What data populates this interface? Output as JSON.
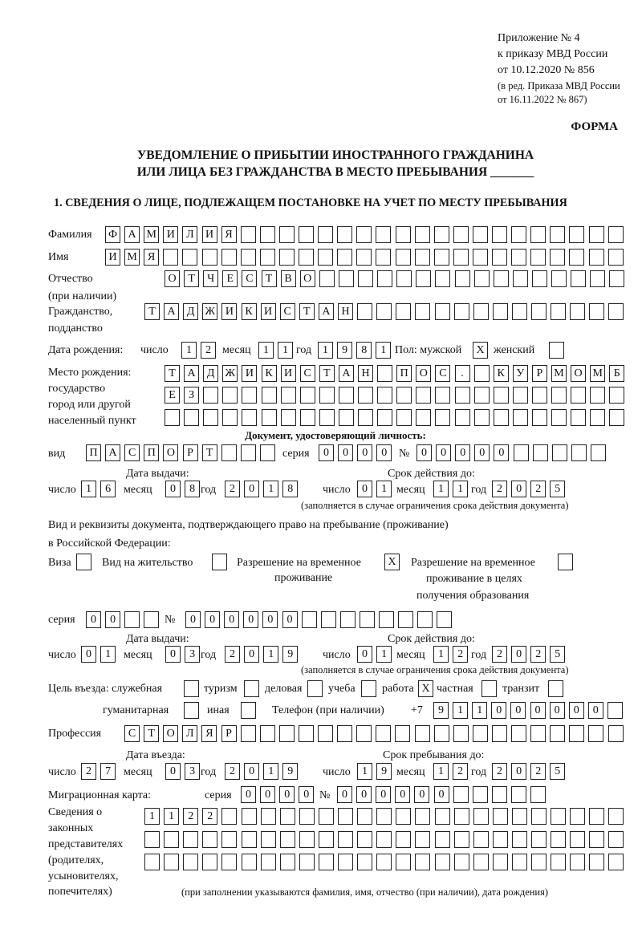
{
  "header": {
    "appendix": "Приложение № 4",
    "order": "к приказу МВД России",
    "order_date": "от 10.12.2020 № 856",
    "edition1": "(в ред. Приказа МВД России",
    "edition2": "от 16.11.2022 № 867)",
    "form": "ФОРМА",
    "title1": "УВЕДОМЛЕНИЕ О ПРИБЫТИИ ИНОСТРАННОГО ГРАЖДАНИНА",
    "title2": "ИЛИ ЛИЦА БЕЗ ГРАЖДАНСТВА В МЕСТО ПРЕБЫВАНИЯ _______",
    "section1": "1. СВЕДЕНИЯ О ЛИЦЕ, ПОДЛЕЖАЩЕМ ПОСТАНОВКЕ НА УЧЕТ ПО МЕСТУ ПРЕБЫВАНИЯ"
  },
  "labels": {
    "surname": "Фамилия",
    "name": "Имя",
    "patronymic1": "Отчество",
    "patronymic2": "(при наличии)",
    "citizenship1": "Гражданство,",
    "citizenship2": "подданство",
    "birth_date": "Дата рождения:",
    "day": "число",
    "month": "месяц",
    "year": "год",
    "sex": "Пол: мужской",
    "female": "женский",
    "birthplace1": "Место рождения:",
    "birthplace2": "государство",
    "birthplace3": "город или другой",
    "birthplace4": "населенный пункт",
    "id_doc": "Документ, удостоверяющий личность:",
    "kind": "вид",
    "series": "серия",
    "number": "№",
    "issue_date": "Дата выдачи:",
    "valid_until": "Срок действия до:",
    "valid_note": "(заполняется в случае ограничения срока действия документа)",
    "right_doc1": "Вид и реквизиты документа, подтверждающего право на пребывание (проживание)",
    "right_doc2": "в Российской Федерации:",
    "visa": "Виза",
    "residence": "Вид на жительство",
    "temp1": "Разрешение на временное",
    "temp2": "проживание",
    "temp_edu1": "Разрешение на временное",
    "temp_edu2": "проживание в целях",
    "temp_edu3": "получения образования",
    "purpose": "Цель въезда: служебная",
    "tourism": "туризм",
    "business": "деловая",
    "study": "учеба",
    "work": "работа",
    "private": "частная",
    "transit": "транзит",
    "humanitarian": "гуманитарная",
    "other": "иная",
    "phone": "Телефон (при наличии)",
    "phone_prefix": "+7",
    "profession": "Профессия",
    "entry_date": "Дата въезда:",
    "stay_until": "Срок пребывания до:",
    "migration_card": "Миграционная карта:",
    "reps1": "Сведения о",
    "reps2": "законных",
    "reps3": "представителях",
    "reps4": "(родителях,",
    "reps5": "усыновителях,",
    "reps6": "попечителях)",
    "reps_note": "(при заполнении указываются фамилия, имя, отчество (при наличии), дата рождения)"
  },
  "fields": {
    "surname": [
      "Ф",
      "А",
      "М",
      "И",
      "Л",
      "И",
      "Я"
    ],
    "name": [
      "И",
      "М",
      "Я"
    ],
    "patronymic": [
      "О",
      "Т",
      "Ч",
      "Е",
      "С",
      "Т",
      "В",
      "О"
    ],
    "citizenship": [
      "Т",
      "А",
      "Д",
      "Ж",
      "И",
      "К",
      "И",
      "С",
      "Т",
      "А",
      "Н"
    ],
    "birth_day": [
      "1",
      "2"
    ],
    "birth_month": [
      "1",
      "1"
    ],
    "birth_year": [
      "1",
      "9",
      "8",
      "1"
    ],
    "sex_male": "X",
    "sex_female": "",
    "birthplace_1": [
      "Т",
      "А",
      "Д",
      "Ж",
      "И",
      "К",
      "И",
      "С",
      "Т",
      "А",
      "Н",
      "",
      "П",
      "О",
      "С",
      ".",
      "",
      "К",
      "У",
      "Р",
      "М",
      "О",
      "М",
      "Б"
    ],
    "birthplace_2": [
      "Е",
      "З"
    ],
    "birthplace_3": [],
    "id_kind": [
      "П",
      "А",
      "С",
      "П",
      "О",
      "Р",
      "Т"
    ],
    "id_series": [
      "0",
      "0",
      "0",
      "0"
    ],
    "id_number": [
      "0",
      "0",
      "0",
      "0",
      "0"
    ],
    "id_issue_day": [
      "1",
      "6"
    ],
    "id_issue_month": [
      "0",
      "8"
    ],
    "id_issue_year": [
      "2",
      "0",
      "1",
      "8"
    ],
    "id_valid_day": [
      "0",
      "1"
    ],
    "id_valid_month": [
      "1",
      "1"
    ],
    "id_valid_year": [
      "2",
      "0",
      "2",
      "5"
    ],
    "right_visa": "",
    "right_residence": "",
    "right_temp": "X",
    "right_temp_edu": "",
    "right_series": [
      "0",
      "0"
    ],
    "right_number": [
      "0",
      "0",
      "0",
      "0",
      "0",
      "0"
    ],
    "right_issue_day": [
      "0",
      "1"
    ],
    "right_issue_month": [
      "0",
      "3"
    ],
    "right_issue_year": [
      "2",
      "0",
      "1",
      "9"
    ],
    "right_valid_day": [
      "0",
      "1"
    ],
    "right_valid_month": [
      "1",
      "2"
    ],
    "right_valid_year": [
      "2",
      "0",
      "2",
      "5"
    ],
    "purpose_service": "",
    "purpose_tourism": "",
    "purpose_business": "",
    "purpose_study": "",
    "purpose_work": "X",
    "purpose_private": "",
    "purpose_transit": "",
    "purpose_humanitarian": "",
    "purpose_other": "",
    "phone": [
      "9",
      "1",
      "1",
      "0",
      "0",
      "0",
      "0",
      "0",
      "0"
    ],
    "profession": [
      "С",
      "Т",
      "О",
      "Л",
      "Я",
      "Р"
    ],
    "entry_day": [
      "2",
      "7"
    ],
    "entry_month": [
      "0",
      "3"
    ],
    "entry_year": [
      "2",
      "0",
      "1",
      "9"
    ],
    "stay_day": [
      "1",
      "9"
    ],
    "stay_month": [
      "1",
      "2"
    ],
    "stay_year": [
      "2",
      "0",
      "2",
      "5"
    ],
    "mig_series": [
      "0",
      "0",
      "0",
      "0"
    ],
    "mig_number": [
      "0",
      "0",
      "0",
      "0",
      "0",
      "0"
    ],
    "reps_1": [
      "1",
      "1",
      "2",
      "2"
    ],
    "reps_2": [],
    "reps_3": []
  }
}
